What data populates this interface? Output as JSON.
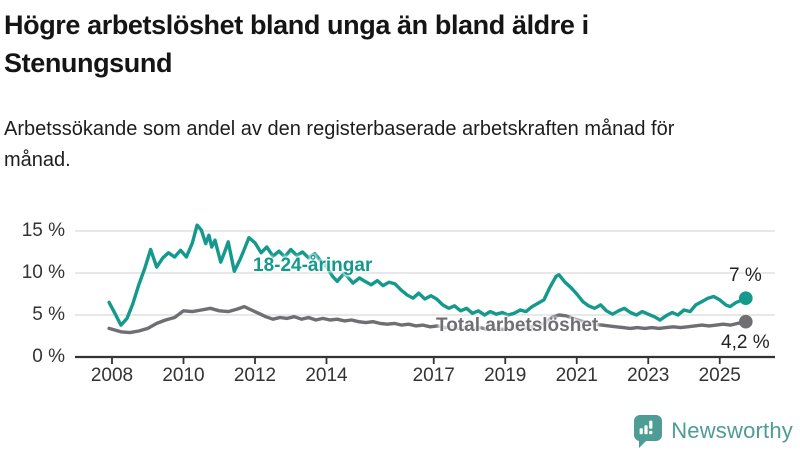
{
  "header": {
    "title": "Högre arbetslöshet bland unga än bland äldre i Stenungsund",
    "subtitle": "Arbetssökande som andel av den registerbaserade arbetskraften månad för månad."
  },
  "chart_data": {
    "type": "line",
    "unit": "%",
    "grid": true,
    "x_range": [
      2007.92,
      2025.73
    ],
    "ylim": [
      0,
      16.5
    ],
    "colors": {
      "grid": "#d9d9d9",
      "axis": "#333333"
    },
    "yticks": [
      {
        "value": 0,
        "label": "0 %"
      },
      {
        "value": 5,
        "label": "5 %"
      },
      {
        "value": 10,
        "label": "10 %"
      },
      {
        "value": 15,
        "label": "15 %"
      }
    ],
    "xticks": [
      {
        "value": 2008,
        "label": "2008"
      },
      {
        "value": 2010,
        "label": "2010"
      },
      {
        "value": 2012,
        "label": "2012"
      },
      {
        "value": 2014,
        "label": "2014"
      },
      {
        "value": 2017,
        "label": "2017"
      },
      {
        "value": 2019,
        "label": "2019"
      },
      {
        "value": 2021,
        "label": "2021"
      },
      {
        "value": 2023,
        "label": "2023"
      },
      {
        "value": 2025,
        "label": "2025"
      }
    ],
    "series": [
      {
        "name": "Total arbetslöshet",
        "color": "#6e6e73",
        "end_label": "4,2 %",
        "points": [
          [
            2007.92,
            3.4
          ],
          [
            2008.25,
            3.0
          ],
          [
            2008.5,
            2.9
          ],
          [
            2008.75,
            3.1
          ],
          [
            2009.0,
            3.4
          ],
          [
            2009.25,
            4.0
          ],
          [
            2009.5,
            4.4
          ],
          [
            2009.75,
            4.7
          ],
          [
            2010.0,
            5.5
          ],
          [
            2010.25,
            5.4
          ],
          [
            2010.5,
            5.6
          ],
          [
            2010.75,
            5.8
          ],
          [
            2011.0,
            5.5
          ],
          [
            2011.25,
            5.4
          ],
          [
            2011.5,
            5.7
          ],
          [
            2011.7,
            6.0
          ],
          [
            2011.9,
            5.6
          ],
          [
            2012.1,
            5.2
          ],
          [
            2012.3,
            4.8
          ],
          [
            2012.5,
            4.5
          ],
          [
            2012.7,
            4.7
          ],
          [
            2012.9,
            4.6
          ],
          [
            2013.1,
            4.8
          ],
          [
            2013.3,
            4.5
          ],
          [
            2013.5,
            4.7
          ],
          [
            2013.7,
            4.4
          ],
          [
            2013.9,
            4.6
          ],
          [
            2014.1,
            4.4
          ],
          [
            2014.3,
            4.5
          ],
          [
            2014.5,
            4.3
          ],
          [
            2014.7,
            4.4
          ],
          [
            2014.9,
            4.2
          ],
          [
            2015.1,
            4.1
          ],
          [
            2015.3,
            4.2
          ],
          [
            2015.5,
            4.0
          ],
          [
            2015.7,
            3.9
          ],
          [
            2015.9,
            4.0
          ],
          [
            2016.1,
            3.8
          ],
          [
            2016.3,
            3.9
          ],
          [
            2016.5,
            3.7
          ],
          [
            2016.7,
            3.8
          ],
          [
            2016.9,
            3.6
          ],
          [
            2017.1,
            3.7
          ],
          [
            2017.3,
            3.5
          ],
          [
            2017.5,
            3.6
          ],
          [
            2017.7,
            3.4
          ],
          [
            2017.9,
            3.5
          ],
          [
            2018.1,
            3.4
          ],
          [
            2018.3,
            3.5
          ],
          [
            2018.5,
            3.3
          ],
          [
            2018.7,
            3.4
          ],
          [
            2018.9,
            3.3
          ],
          [
            2019.1,
            3.4
          ],
          [
            2019.3,
            3.5
          ],
          [
            2019.5,
            3.4
          ],
          [
            2019.7,
            3.6
          ],
          [
            2019.9,
            3.8
          ],
          [
            2020.1,
            4.0
          ],
          [
            2020.3,
            4.7
          ],
          [
            2020.5,
            5.0
          ],
          [
            2020.7,
            4.9
          ],
          [
            2020.9,
            4.6
          ],
          [
            2021.1,
            4.3
          ],
          [
            2021.3,
            4.1
          ],
          [
            2021.5,
            3.9
          ],
          [
            2021.7,
            3.8
          ],
          [
            2021.9,
            3.7
          ],
          [
            2022.1,
            3.6
          ],
          [
            2022.3,
            3.5
          ],
          [
            2022.5,
            3.4
          ],
          [
            2022.7,
            3.5
          ],
          [
            2022.9,
            3.4
          ],
          [
            2023.1,
            3.5
          ],
          [
            2023.3,
            3.4
          ],
          [
            2023.5,
            3.5
          ],
          [
            2023.7,
            3.6
          ],
          [
            2023.9,
            3.5
          ],
          [
            2024.1,
            3.6
          ],
          [
            2024.3,
            3.7
          ],
          [
            2024.5,
            3.8
          ],
          [
            2024.7,
            3.7
          ],
          [
            2024.9,
            3.8
          ],
          [
            2025.1,
            3.9
          ],
          [
            2025.3,
            3.8
          ],
          [
            2025.5,
            4.0
          ],
          [
            2025.73,
            4.2
          ]
        ]
      },
      {
        "name": "18-24-åringar",
        "color": "#149a8d",
        "end_label": "7 %",
        "points": [
          [
            2007.92,
            6.5
          ],
          [
            2008.08,
            5.2
          ],
          [
            2008.25,
            3.8
          ],
          [
            2008.42,
            4.6
          ],
          [
            2008.58,
            6.3
          ],
          [
            2008.75,
            8.6
          ],
          [
            2008.92,
            10.6
          ],
          [
            2009.08,
            12.8
          ],
          [
            2009.25,
            10.7
          ],
          [
            2009.42,
            11.8
          ],
          [
            2009.58,
            12.4
          ],
          [
            2009.75,
            11.9
          ],
          [
            2009.92,
            12.7
          ],
          [
            2010.08,
            11.9
          ],
          [
            2010.25,
            13.6
          ],
          [
            2010.38,
            15.7
          ],
          [
            2010.5,
            15.1
          ],
          [
            2010.62,
            13.5
          ],
          [
            2010.71,
            14.5
          ],
          [
            2010.79,
            13.1
          ],
          [
            2010.88,
            13.9
          ],
          [
            2011.04,
            11.3
          ],
          [
            2011.17,
            12.7
          ],
          [
            2011.25,
            13.7
          ],
          [
            2011.42,
            10.2
          ],
          [
            2011.58,
            11.6
          ],
          [
            2011.67,
            12.5
          ],
          [
            2011.83,
            14.2
          ],
          [
            2012.0,
            13.6
          ],
          [
            2012.17,
            12.4
          ],
          [
            2012.33,
            13.1
          ],
          [
            2012.5,
            12.0
          ],
          [
            2012.67,
            12.6
          ],
          [
            2012.83,
            11.9
          ],
          [
            2013.0,
            12.8
          ],
          [
            2013.17,
            12.1
          ],
          [
            2013.33,
            12.5
          ],
          [
            2013.5,
            11.8
          ],
          [
            2013.67,
            12.3
          ],
          [
            2013.83,
            11.5
          ],
          [
            2014.0,
            10.8
          ],
          [
            2014.17,
            9.6
          ],
          [
            2014.3,
            9.0
          ],
          [
            2014.5,
            10.0
          ],
          [
            2014.74,
            8.8
          ],
          [
            2014.92,
            9.4
          ],
          [
            2015.08,
            9.0
          ],
          [
            2015.25,
            8.6
          ],
          [
            2015.42,
            9.1
          ],
          [
            2015.58,
            8.5
          ],
          [
            2015.75,
            8.9
          ],
          [
            2015.92,
            8.7
          ],
          [
            2016.08,
            8.0
          ],
          [
            2016.25,
            7.4
          ],
          [
            2016.42,
            7.0
          ],
          [
            2016.58,
            7.6
          ],
          [
            2016.75,
            6.9
          ],
          [
            2016.92,
            7.3
          ],
          [
            2017.08,
            6.9
          ],
          [
            2017.25,
            6.2
          ],
          [
            2017.42,
            5.8
          ],
          [
            2017.58,
            6.1
          ],
          [
            2017.75,
            5.5
          ],
          [
            2017.92,
            5.8
          ],
          [
            2018.08,
            5.2
          ],
          [
            2018.25,
            5.5
          ],
          [
            2018.42,
            5.0
          ],
          [
            2018.58,
            5.4
          ],
          [
            2018.75,
            5.1
          ],
          [
            2018.92,
            5.3
          ],
          [
            2019.08,
            5.0
          ],
          [
            2019.25,
            5.2
          ],
          [
            2019.42,
            5.6
          ],
          [
            2019.58,
            5.4
          ],
          [
            2019.75,
            6.0
          ],
          [
            2019.92,
            6.4
          ],
          [
            2020.08,
            6.8
          ],
          [
            2020.25,
            8.3
          ],
          [
            2020.42,
            9.6
          ],
          [
            2020.5,
            9.8
          ],
          [
            2020.67,
            8.9
          ],
          [
            2020.83,
            8.3
          ],
          [
            2021.0,
            7.5
          ],
          [
            2021.17,
            6.6
          ],
          [
            2021.33,
            6.1
          ],
          [
            2021.5,
            5.8
          ],
          [
            2021.67,
            6.2
          ],
          [
            2021.83,
            5.5
          ],
          [
            2022.0,
            5.1
          ],
          [
            2022.17,
            5.5
          ],
          [
            2022.33,
            5.8
          ],
          [
            2022.5,
            5.3
          ],
          [
            2022.67,
            5.0
          ],
          [
            2022.83,
            5.4
          ],
          [
            2023.0,
            5.1
          ],
          [
            2023.17,
            4.8
          ],
          [
            2023.33,
            4.4
          ],
          [
            2023.5,
            4.9
          ],
          [
            2023.67,
            5.3
          ],
          [
            2023.83,
            5.0
          ],
          [
            2024.0,
            5.6
          ],
          [
            2024.17,
            5.4
          ],
          [
            2024.33,
            6.2
          ],
          [
            2024.5,
            6.6
          ],
          [
            2024.67,
            7.0
          ],
          [
            2024.83,
            7.2
          ],
          [
            2025.0,
            6.8
          ],
          [
            2025.17,
            6.2
          ],
          [
            2025.29,
            6.0
          ],
          [
            2025.46,
            6.5
          ],
          [
            2025.58,
            6.7
          ],
          [
            2025.73,
            7.0
          ]
        ]
      }
    ]
  },
  "footer": {
    "brand": "Newsworthy",
    "brand_color": "#4e9c96"
  }
}
